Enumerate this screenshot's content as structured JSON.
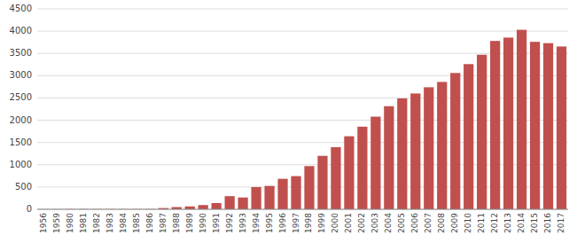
{
  "chart_data": {
    "type": "bar",
    "categories": [
      "1956",
      "1959",
      "1980",
      "1981",
      "1982",
      "1983",
      "1984",
      "1985",
      "1986",
      "1987",
      "1988",
      "1989",
      "1990",
      "1991",
      "1992",
      "1993",
      "1994",
      "1995",
      "1996",
      "1997",
      "1998",
      "1999",
      "2000",
      "2001",
      "2002",
      "2003",
      "2004",
      "2005",
      "2006",
      "2007",
      "2008",
      "2009",
      "2010",
      "2011",
      "2012",
      "2013",
      "2014",
      "2015",
      "2016",
      "2017"
    ],
    "values": [
      2,
      3,
      5,
      5,
      5,
      5,
      5,
      5,
      5,
      28,
      50,
      65,
      95,
      140,
      295,
      265,
      500,
      525,
      685,
      745,
      970,
      1200,
      1395,
      1640,
      1855,
      2080,
      2315,
      2490,
      2600,
      2740,
      2860,
      3060,
      3260,
      3470,
      3780,
      3855,
      4030,
      3760,
      3730,
      3655
    ],
    "color": "#C0504D",
    "ylim": [
      0,
      4500
    ],
    "yticks": [
      0,
      500,
      1000,
      1500,
      2000,
      2500,
      3000,
      3500,
      4000,
      4500
    ],
    "grid": true
  }
}
